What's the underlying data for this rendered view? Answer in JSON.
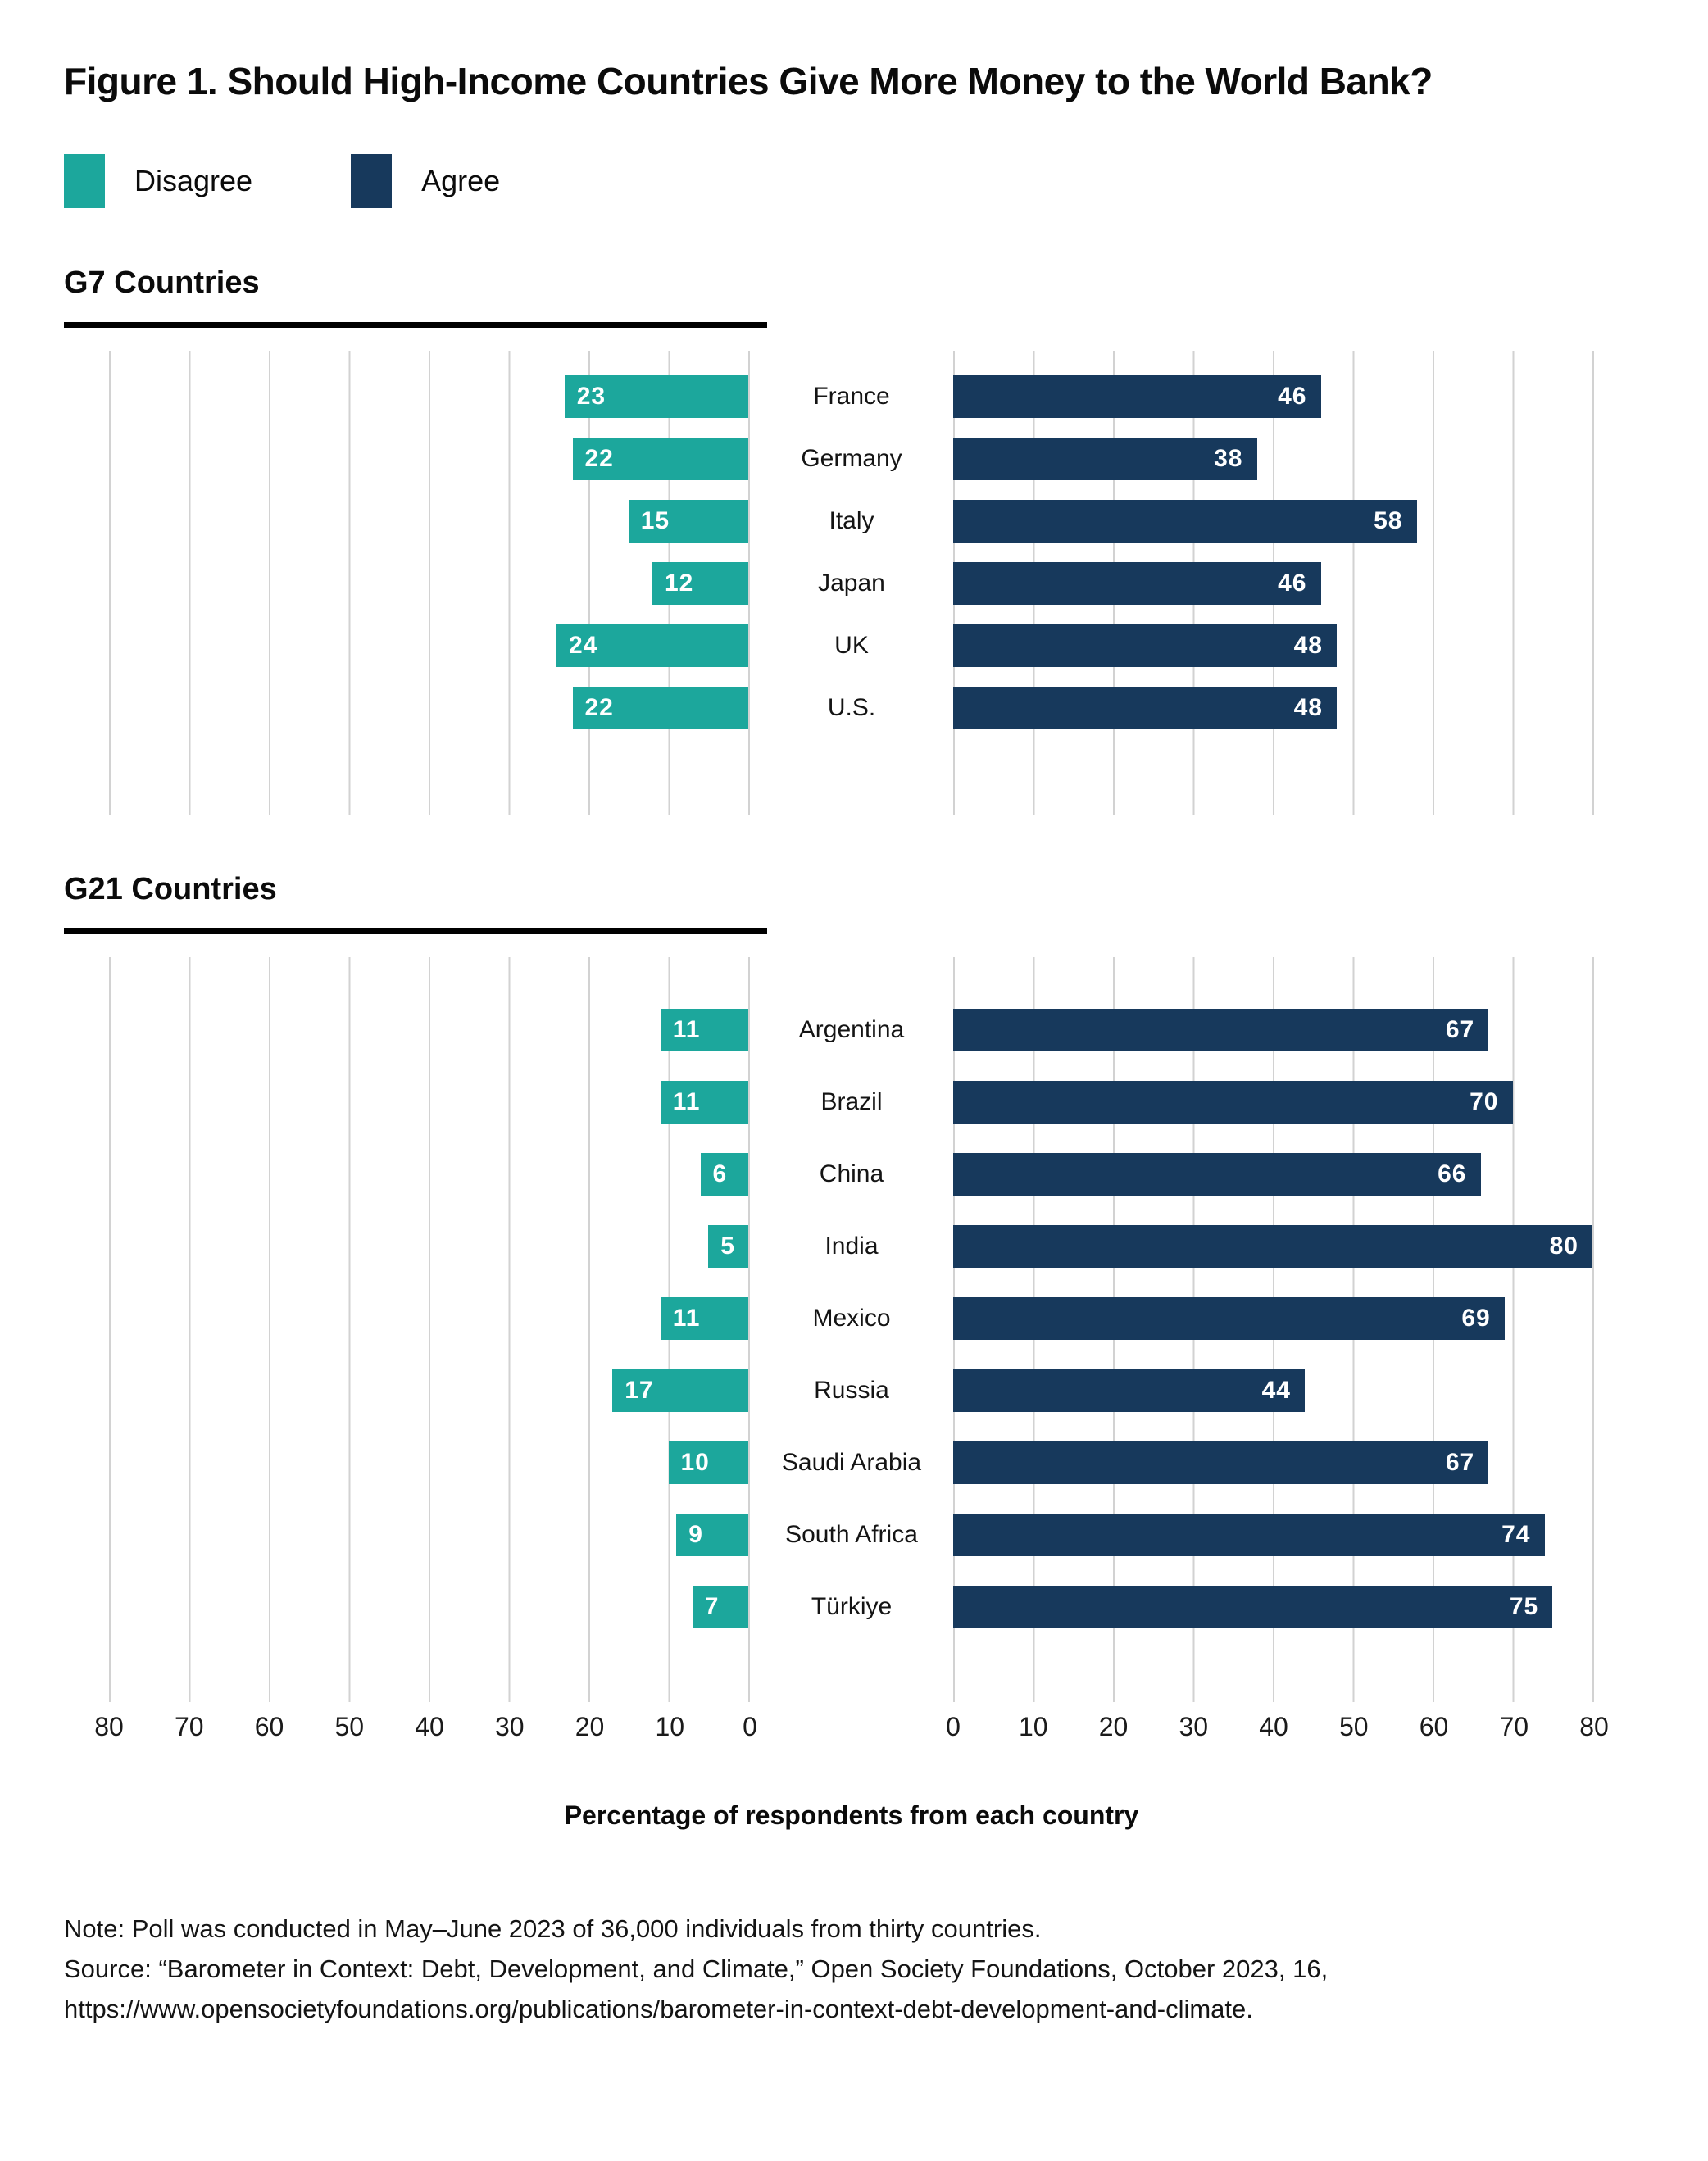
{
  "title": "Figure 1. Should High-Income Countries Give More Money to the World Bank?",
  "legend": [
    {
      "label": "Disagree",
      "color": "#1ca79c"
    },
    {
      "label": "Agree",
      "color": "#17395c"
    }
  ],
  "axis": {
    "label": "Percentage of respondents from each country",
    "left_ticks": [
      "80",
      "70",
      "60",
      "50",
      "40",
      "30",
      "20",
      "10",
      "0"
    ],
    "right_ticks": [
      "0",
      "10",
      "20",
      "30",
      "40",
      "50",
      "60",
      "70",
      "80"
    ]
  },
  "chart_data": {
    "type": "bar",
    "subtype": "diverging-horizontal",
    "title": "Figure 1. Should High-Income Countries Give More Money to the World Bank?",
    "xlabel": "Percentage of respondents from each country",
    "axis_max": 80,
    "axis_step": 10,
    "grid": true,
    "legend_position": "top-left",
    "series_names": [
      "Disagree",
      "Agree"
    ],
    "groups": [
      {
        "name": "G7 Countries",
        "rows": [
          {
            "country": "France",
            "disagree": 23,
            "agree": 46
          },
          {
            "country": "Germany",
            "disagree": 22,
            "agree": 38
          },
          {
            "country": "Italy",
            "disagree": 15,
            "agree": 58
          },
          {
            "country": "Japan",
            "disagree": 12,
            "agree": 46
          },
          {
            "country": "UK",
            "disagree": 24,
            "agree": 48
          },
          {
            "country": "U.S.",
            "disagree": 22,
            "agree": 48
          }
        ]
      },
      {
        "name": "G21 Countries",
        "rows": [
          {
            "country": "Argentina",
            "disagree": 11,
            "agree": 67
          },
          {
            "country": "Brazil",
            "disagree": 11,
            "agree": 70
          },
          {
            "country": "China",
            "disagree": 6,
            "agree": 66
          },
          {
            "country": "India",
            "disagree": 5,
            "agree": 80
          },
          {
            "country": "Mexico",
            "disagree": 11,
            "agree": 69
          },
          {
            "country": "Russia",
            "disagree": 17,
            "agree": 44
          },
          {
            "country": "Saudi Arabia",
            "disagree": 10,
            "agree": 67
          },
          {
            "country": "South Africa",
            "disagree": 9,
            "agree": 74
          },
          {
            "country": "Türkiye",
            "disagree": 7,
            "agree": 75
          }
        ]
      }
    ]
  },
  "notes": {
    "line1": "Note: Poll was conducted in May–June 2023 of 36,000 individuals from thirty countries.",
    "line2": "Source: “Barometer in Context: Debt, Development, and Climate,” Open Society Foundations, October 2023, 16,",
    "line3": "https://www.opensocietyfoundations.org/publications/barometer-in-context-debt-development-and-climate."
  }
}
